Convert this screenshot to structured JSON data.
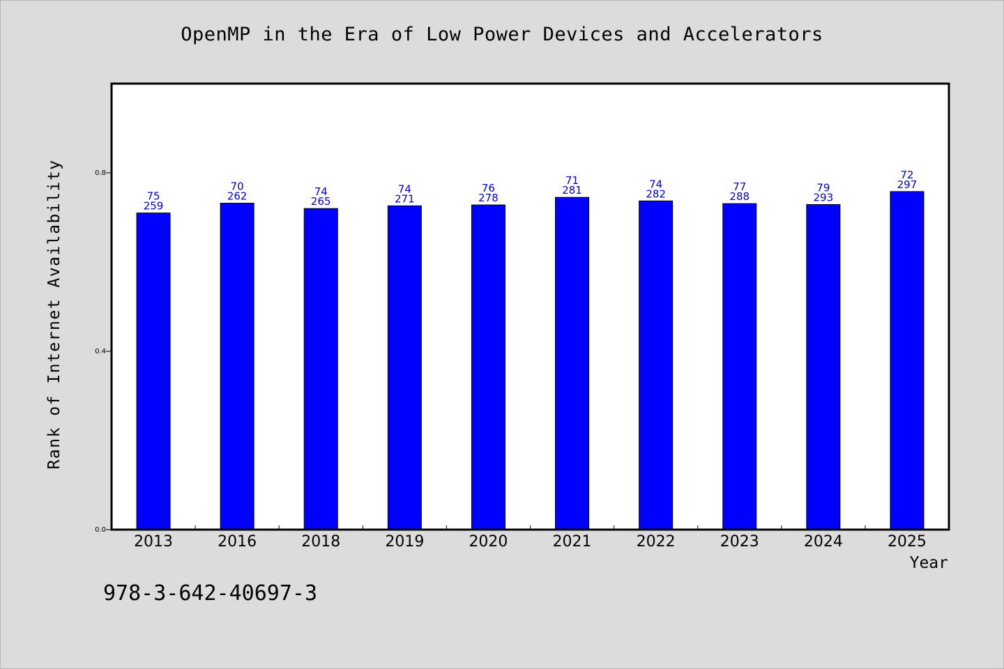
{
  "chart_data": {
    "type": "bar",
    "title": "OpenMP in the Era of Low Power Devices and Accelerators",
    "xlabel": "Year",
    "ylabel": "Rank of Internet Availability",
    "categories": [
      "2013",
      "2016",
      "2018",
      "2019",
      "2020",
      "2021",
      "2022",
      "2023",
      "2024",
      "2025"
    ],
    "values": [
      0.71,
      0.732,
      0.72,
      0.726,
      0.728,
      0.745,
      0.737,
      0.731,
      0.729,
      0.758
    ],
    "data_labels": {
      "top": [
        "75",
        "70",
        "74",
        "74",
        "76",
        "71",
        "74",
        "77",
        "79",
        "72"
      ],
      "bottom": [
        "259",
        "262",
        "265",
        "271",
        "278",
        "281",
        "282",
        "288",
        "293",
        "297"
      ]
    },
    "ylim": [
      0,
      1.0
    ],
    "yticks": [
      0.0,
      0.4,
      0.8
    ],
    "ytick_labels": [
      "0.0",
      "0.4",
      "0.8"
    ],
    "grid": false,
    "legend": "none",
    "colors": {
      "bar": "#0000ff",
      "label": "#0000cc",
      "background": "#dcdcdc",
      "plot_background": "#ffffff"
    }
  },
  "footnote": "978-3-642-40697-3"
}
